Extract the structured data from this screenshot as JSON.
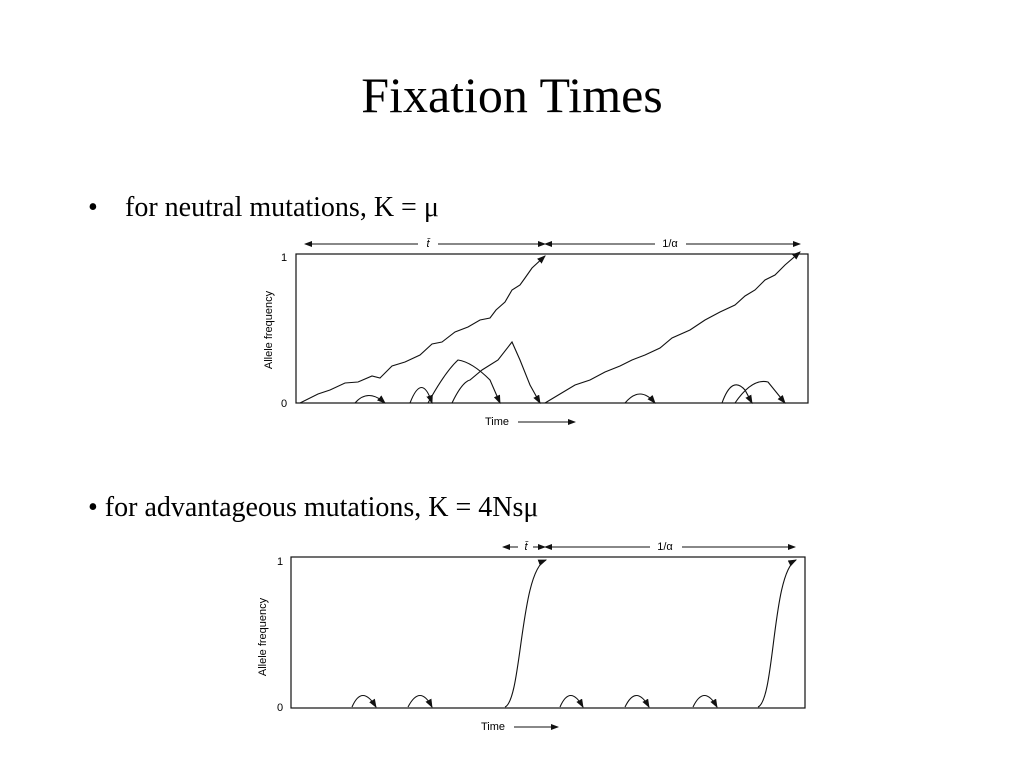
{
  "header": {
    "title": "Fixation Times"
  },
  "sections": [
    {
      "bullet": "for neutral mutations, K = μ",
      "figure": {
        "span_left": "t̄",
        "span_right": "1/α",
        "y_axis": "Allele frequency",
        "y_top": 1,
        "y_bottom": 0,
        "x_axis": "Time"
      }
    },
    {
      "bullet": "• for advantageous mutations, K = 4Nsμ",
      "figure": {
        "span_left": "t̄",
        "span_right": "1/α",
        "y_axis": "Allele frequency",
        "y_top": 1,
        "y_bottom": 0,
        "x_axis": "Time"
      }
    }
  ]
}
